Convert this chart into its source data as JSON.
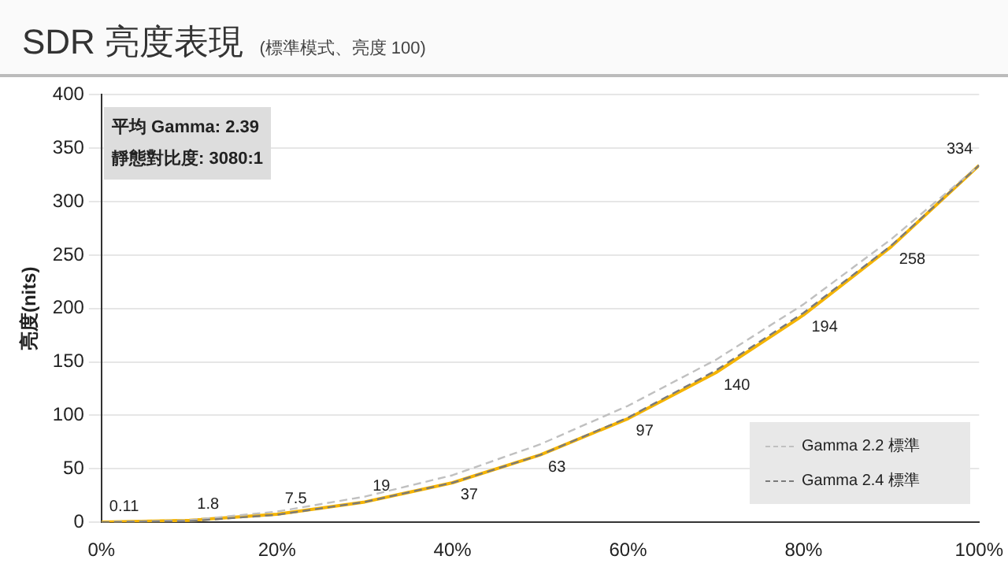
{
  "chart_data": {
    "type": "line",
    "title": "SDR 亮度表現",
    "subtitle": "(標準模式、亮度 100)",
    "ylabel": "亮度(nits)",
    "x": [
      0,
      10,
      20,
      30,
      40,
      50,
      60,
      70,
      80,
      90,
      100
    ],
    "xlim": [
      0,
      100
    ],
    "xticks": [
      {
        "value": 0,
        "label": "0%"
      },
      {
        "value": 20,
        "label": "20%"
      },
      {
        "value": 40,
        "label": "40%"
      },
      {
        "value": 60,
        "label": "60%"
      },
      {
        "value": 80,
        "label": "80%"
      },
      {
        "value": 100,
        "label": "100%"
      }
    ],
    "ylim": [
      0,
      400
    ],
    "yticks": [
      0,
      50,
      100,
      150,
      200,
      250,
      300,
      350,
      400
    ],
    "grid": "y",
    "legend": "bottom right",
    "marker": "none",
    "annotations": [
      "平均 Gamma: 2.39",
      "靜態對比度: 3080:1"
    ],
    "series": [
      {
        "color": "#f5b400",
        "line_style": "solid",
        "values": [
          0.11,
          1.8,
          7.5,
          19,
          37,
          63,
          97,
          140,
          194,
          258,
          334
        ],
        "value_labels": [
          "0.11",
          "1.8",
          "7.5",
          "19",
          "37",
          "63",
          "97",
          "140",
          "194",
          "258",
          "334"
        ]
      },
      {
        "name": "Gamma 2.2 標準",
        "color": "#c0c0c0",
        "line_style": "dashed",
        "values": [
          0,
          2,
          10,
          24,
          44,
          73,
          109,
          152,
          204,
          265,
          334
        ]
      },
      {
        "name": "Gamma 2.4 標準",
        "color": "#7a7a7a",
        "line_style": "dashed",
        "values": [
          0,
          1,
          7,
          19,
          37,
          63,
          98,
          142,
          196,
          259,
          334
        ]
      }
    ]
  }
}
